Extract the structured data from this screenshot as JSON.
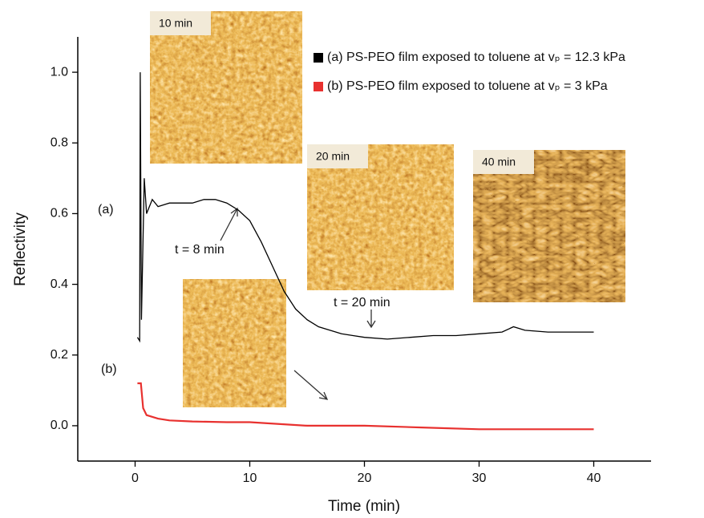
{
  "chart_data": {
    "type": "line",
    "x_label": "Time (min)",
    "y_label": "Reflectivity",
    "xlim": [
      -5,
      45
    ],
    "xticks": [
      0,
      10,
      20,
      30,
      40
    ],
    "ylim": [
      -0.1,
      1.1
    ],
    "yticks": [
      {
        "value": 0,
        "label": "0.0"
      },
      0.2,
      0.4,
      0.6,
      0.8,
      {
        "value": 1,
        "label": "1.0"
      }
    ],
    "legend": "upper right",
    "annotations": [
      "(a)",
      "(b)",
      "t = 8 min",
      "t = 20 min",
      "10 min",
      "20 min",
      "40 min"
    ],
    "series": [
      {
        "name": "(a) PS-PEO film exposed to toluene at vₚ = 12.3 kPa",
        "color": "#000000",
        "x": [
          0.2,
          0.4,
          0.45,
          0.55,
          0.8,
          1.0,
          1.5,
          2,
          3,
          4,
          5,
          6,
          7,
          8,
          9,
          10,
          11,
          12,
          13,
          14,
          15,
          16,
          17,
          18,
          19,
          20,
          22,
          24,
          26,
          28,
          30,
          32,
          33,
          34,
          36,
          38,
          40
        ],
        "values": [
          0.25,
          0.24,
          1.0,
          0.3,
          0.7,
          0.6,
          0.64,
          0.62,
          0.63,
          0.63,
          0.63,
          0.64,
          0.64,
          0.63,
          0.61,
          0.58,
          0.52,
          0.45,
          0.38,
          0.33,
          0.3,
          0.28,
          0.27,
          0.26,
          0.255,
          0.25,
          0.245,
          0.25,
          0.255,
          0.255,
          0.26,
          0.265,
          0.28,
          0.27,
          0.265,
          0.265,
          0.265
        ]
      },
      {
        "name": "(b) PS-PEO film exposed to toluene at vₚ = 3 kPa",
        "color": "#e8312f",
        "x": [
          0.2,
          0.5,
          0.7,
          1,
          2,
          3,
          5,
          8,
          10,
          15,
          20,
          25,
          30,
          35,
          40
        ],
        "values": [
          0.12,
          0.12,
          0.05,
          0.03,
          0.02,
          0.015,
          0.012,
          0.01,
          0.01,
          0.0,
          0.0,
          -0.005,
          -0.01,
          -0.01,
          -0.01
        ]
      }
    ]
  }
}
